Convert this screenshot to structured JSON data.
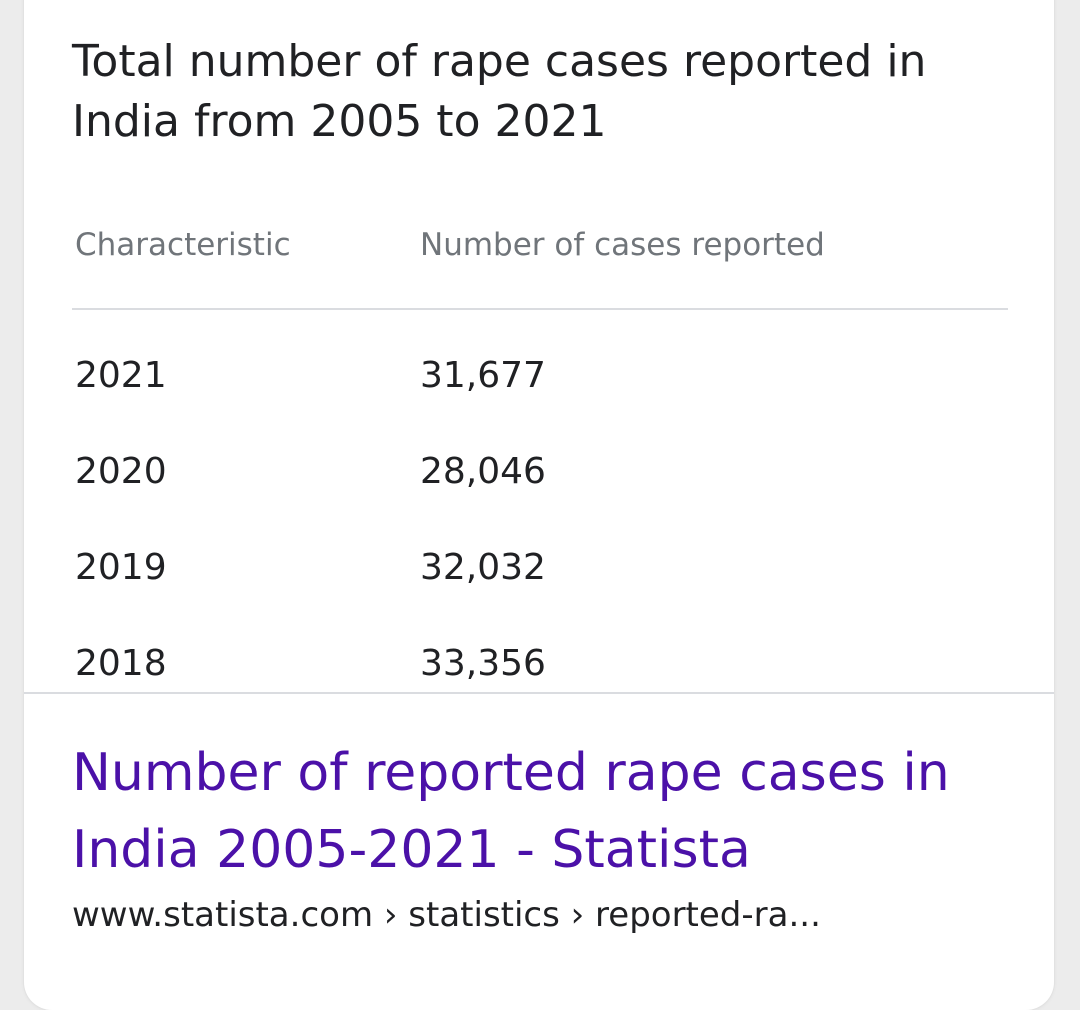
{
  "card": {
    "title": "Total number of rape cases reported in India from 2005 to 2021"
  },
  "table": {
    "headers": {
      "characteristic": "Characteristic",
      "value": "Number of cases reported"
    },
    "rows": [
      {
        "year": "2021",
        "value": "31,677"
      },
      {
        "year": "2020",
        "value": "28,046"
      },
      {
        "year": "2019",
        "value": "32,032"
      },
      {
        "year": "2018",
        "value": "33,356"
      }
    ]
  },
  "result": {
    "link_text": "Number of reported rape cases in India 2005-2021 - Statista",
    "url_breadcrumb": "www.statista.com › statistics › reported-ra..."
  }
}
